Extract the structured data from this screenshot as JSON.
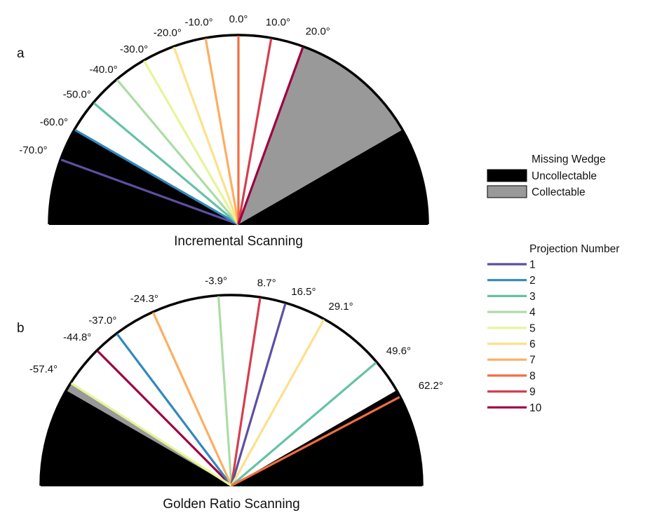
{
  "colors": {
    "uncollectable": "#000000",
    "collectable": "#999999",
    "projections": [
      "#5e4fa2",
      "#3288bd",
      "#66c2a5",
      "#abdda4",
      "#e6f598",
      "#fee08b",
      "#fdae61",
      "#f46d43",
      "#d53e4f",
      "#9e0142"
    ]
  },
  "legend": {
    "wedge_title": "Missing Wedge",
    "uncollectable_label": "Uncollectable",
    "collectable_label": "Collectable",
    "projection_title": "Projection Number",
    "projection_labels": [
      "1",
      "2",
      "3",
      "4",
      "5",
      "6",
      "7",
      "8",
      "9",
      "10"
    ]
  },
  "panels": [
    {
      "letter": "a",
      "caption": "Incremental Scanning",
      "tilt_range": [
        -60,
        60
      ],
      "collected_range": [
        -70,
        20
      ],
      "projections": [
        {
          "index": 1,
          "angle": -70.0,
          "label": "-70.0°"
        },
        {
          "index": 2,
          "angle": -60.0,
          "label": "-60.0°"
        },
        {
          "index": 3,
          "angle": -50.0,
          "label": "-50.0°"
        },
        {
          "index": 4,
          "angle": -40.0,
          "label": "-40.0°"
        },
        {
          "index": 5,
          "angle": -30.0,
          "label": "-30.0°"
        },
        {
          "index": 6,
          "angle": -20.0,
          "label": "-20.0°"
        },
        {
          "index": 7,
          "angle": -10.0,
          "label": "-10.0°"
        },
        {
          "index": 8,
          "angle": 0.0,
          "label": "0.0°"
        },
        {
          "index": 9,
          "angle": 10.0,
          "label": "10.0°"
        },
        {
          "index": 10,
          "angle": 20.0,
          "label": "20.0°"
        }
      ]
    },
    {
      "letter": "b",
      "caption": "Golden Ratio Scanning",
      "tilt_range": [
        -60,
        60
      ],
      "collected_range": [
        -57.4,
        62.2
      ],
      "projections": [
        {
          "index": 10,
          "angle": -44.8,
          "label": "-44.8°"
        },
        {
          "index": 2,
          "angle": -37.0,
          "label": "-37.0°"
        },
        {
          "index": 7,
          "angle": -24.3,
          "label": "-24.3°"
        },
        {
          "index": 4,
          "angle": -3.9,
          "label": "-3.9°"
        },
        {
          "index": 9,
          "angle": 8.7,
          "label": "8.7°"
        },
        {
          "index": 1,
          "angle": 16.5,
          "label": "16.5°"
        },
        {
          "index": 6,
          "angle": 29.1,
          "label": "29.1°"
        },
        {
          "index": 3,
          "angle": 49.6,
          "label": "49.6°"
        },
        {
          "index": 5,
          "angle": -57.4,
          "label": "-57.4°"
        },
        {
          "index": 8,
          "angle": 62.2,
          "label": "62.2°"
        }
      ]
    }
  ]
}
